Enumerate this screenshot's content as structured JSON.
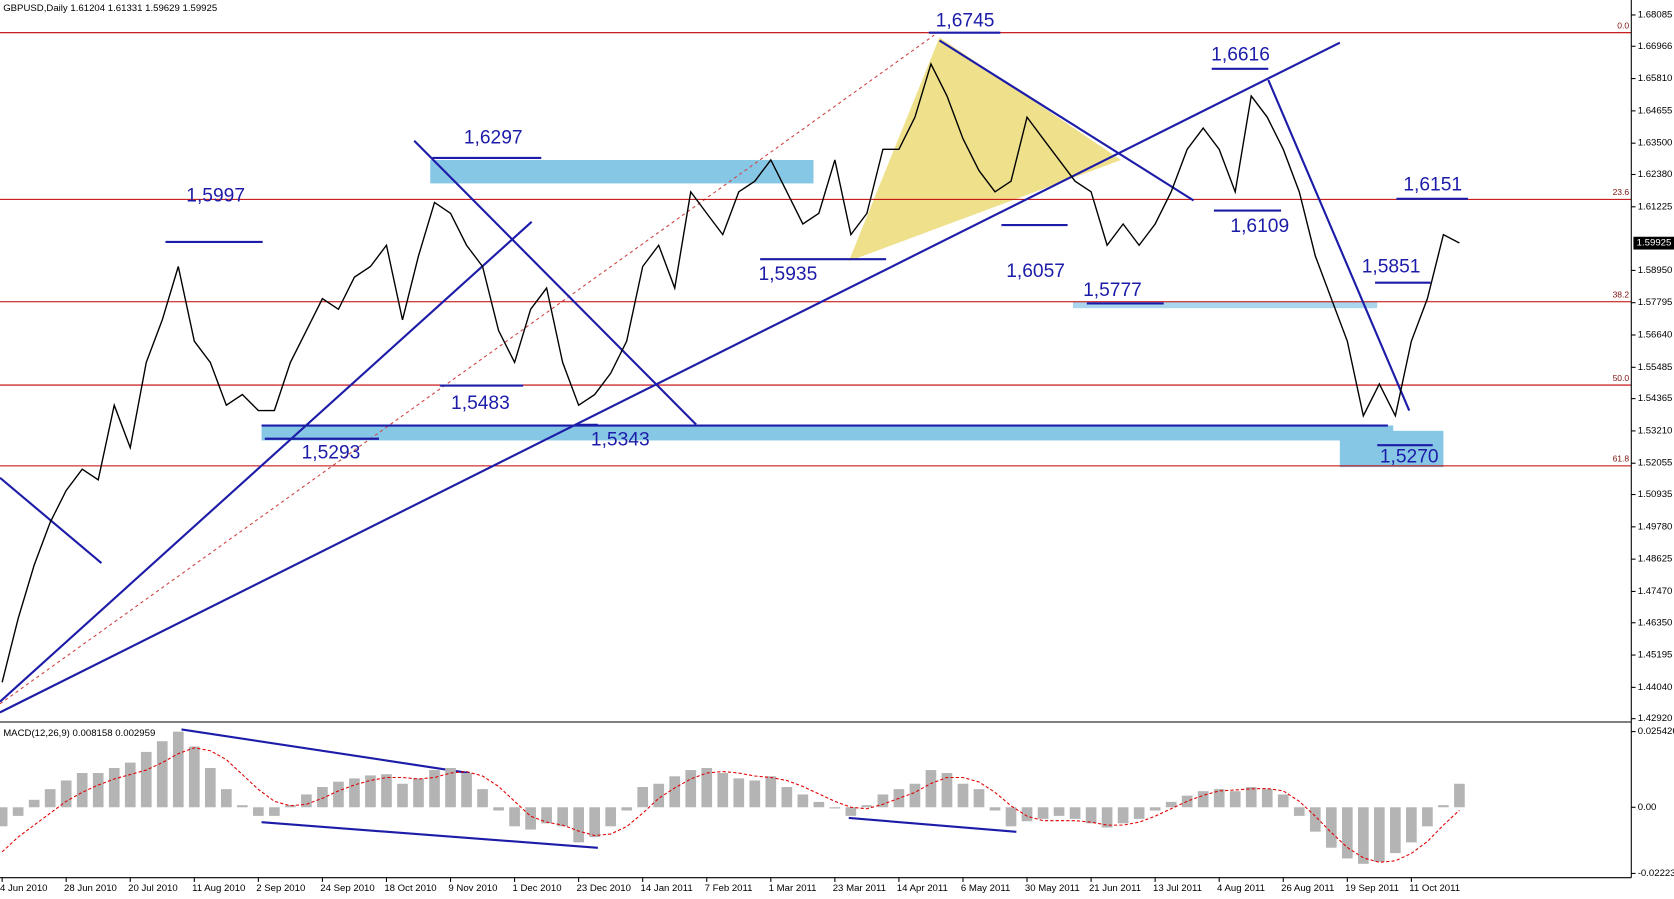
{
  "chart_data": {
    "type": "line",
    "title": "GBPUSD,Daily  1.61204 1.61331 1.59629 1.59925",
    "categories": [
      "4 Jun 2010",
      null,
      null,
      null,
      "28 Jun 2010",
      null,
      null,
      null,
      "20 Jul 2010",
      null,
      null,
      null,
      "11 Aug 2010",
      null,
      null,
      null,
      "2 Sep 2010",
      null,
      null,
      null,
      "24 Sep 2010",
      null,
      null,
      null,
      "18 Oct 2010",
      null,
      null,
      null,
      "9 Nov 2010",
      null,
      null,
      null,
      "1 Dec 2010",
      null,
      null,
      null,
      "23 Dec 2010",
      null,
      null,
      null,
      "14 Jan 2011",
      null,
      null,
      null,
      "7 Feb 2011",
      null,
      null,
      null,
      "1 Mar 2011",
      null,
      null,
      null,
      "23 Mar 2011",
      null,
      null,
      null,
      "14 Apr 2011",
      null,
      null,
      null,
      "6 May 2011",
      null,
      null,
      null,
      "30 May 2011",
      null,
      null,
      null,
      "21 Jun 2011",
      null,
      null,
      null,
      "13 Jul 2011",
      null,
      null,
      null,
      "4 Aug 2011",
      null,
      null,
      null,
      "26 Aug 2011",
      null,
      null,
      null,
      "19 Sep 2011",
      null,
      null,
      null,
      "11 Oct 2011",
      null,
      null,
      null
    ],
    "values": [
      1.4422,
      1.465,
      1.4841,
      1.4994,
      1.5108,
      1.5184,
      1.5146,
      1.5413,
      1.5261,
      1.5566,
      1.5718,
      1.5909,
      1.5642,
      1.5566,
      1.5413,
      1.5451,
      1.5394,
      1.5394,
      1.5566,
      1.568,
      1.5794,
      1.5756,
      1.5871,
      1.5909,
      1.5985,
      1.5718,
      1.5947,
      1.6138,
      1.6099,
      1.5985,
      1.5909,
      1.568,
      1.5566,
      1.5756,
      1.5832,
      1.5566,
      1.5413,
      1.5451,
      1.5527,
      1.5642,
      1.5909,
      1.5985,
      1.5832,
      1.6176,
      1.6099,
      1.6023,
      1.6176,
      1.6214,
      1.629,
      1.6176,
      1.6061,
      1.6099,
      1.629,
      1.6023,
      1.6099,
      1.6328,
      1.6328,
      1.6443,
      1.6633,
      1.6519,
      1.6366,
      1.6252,
      1.6176,
      1.6214,
      1.6443,
      1.6366,
      1.629,
      1.6214,
      1.6176,
      1.5985,
      1.6061,
      1.5985,
      1.6061,
      1.6176,
      1.6328,
      1.6404,
      1.6328,
      1.6176,
      1.6519,
      1.6443,
      1.6328,
      1.6176,
      1.5947,
      1.5794,
      1.5642,
      1.5375,
      1.5489,
      1.5375,
      1.5642,
      1.5794,
      1.6023,
      1.5993
    ],
    "color": "#000000",
    "ylim": [
      1.4284,
      1.6862
    ],
    "yticks": [
      1.68085,
      1.66966,
      {
        "value": 1.6581,
        "label": "1.65810"
      },
      1.64655,
      {
        "value": 1.635,
        "label": "1.63500"
      },
      {
        "value": 1.6238,
        "label": "1.62380"
      },
      1.61225,
      {
        "value": 1.5895,
        "label": "1.58950"
      },
      1.57795,
      {
        "value": 1.5664,
        "label": "1.56640"
      },
      1.55485,
      1.54365,
      {
        "value": 1.5321,
        "label": "1.53210"
      },
      1.52055,
      1.50935,
      {
        "value": 1.4978,
        "label": "1.49780"
      },
      1.48625,
      {
        "value": 1.4747,
        "label": "1.47470"
      },
      {
        "value": 1.4635,
        "label": "1.46350"
      },
      1.45195,
      {
        "value": 1.4404,
        "label": "1.44040"
      },
      {
        "value": 1.4292,
        "label": "1.42920"
      }
    ],
    "last_price": 1.59925,
    "fib_levels": [
      {
        "label": "0.0",
        "value": 1.6745
      },
      {
        "label": "23.6",
        "value": 1.6149
      },
      {
        "label": "38.2",
        "value": 1.5783
      },
      {
        "label": "50.0",
        "value": 1.5485
      },
      {
        "label": "61.8",
        "value": 1.5196
      }
    ],
    "fib_color": "#c00000",
    "annotations": [
      {
        "label": "1,6745",
        "value": 1.6745
      },
      {
        "label": "1,6297",
        "value": 1.6297
      },
      {
        "label": "1,5997",
        "value": 1.5997
      },
      {
        "label": "1,5935",
        "value": 1.5935
      },
      {
        "label": "1,6616",
        "value": 1.6616
      },
      {
        "label": "1,6151",
        "value": 1.6151
      },
      {
        "label": "1,6109",
        "value": 1.6109
      },
      {
        "label": "1,6057",
        "value": 1.6057
      },
      {
        "label": "1,5851",
        "value": 1.5851
      },
      {
        "label": "1,5777",
        "value": 1.5777
      },
      {
        "label": "1,5483",
        "value": 1.5483
      },
      {
        "label": "1,5293",
        "value": 1.5293
      },
      {
        "label": "1,5343",
        "value": 1.5343
      },
      {
        "label": "1,5270",
        "value": 1.527
      }
    ],
    "macd": {
      "title": "MACD(12,26,9) 0.008158 0.002959",
      "histogram": [
        -0.0064,
        -0.0029,
        0.0025,
        0.0061,
        0.009,
        0.0115,
        0.0115,
        0.0132,
        0.015,
        0.0186,
        0.0222,
        0.0254,
        0.0204,
        0.0132,
        0.0061,
        0.0007,
        -0.0029,
        -0.0029,
        0.0007,
        0.0043,
        0.0068,
        0.0086,
        0.0097,
        0.0107,
        0.0111,
        0.0079,
        0.0097,
        0.0125,
        0.0132,
        0.0115,
        0.0061,
        -0.0011,
        -0.0064,
        -0.0075,
        -0.0054,
        -0.0064,
        -0.0118,
        -0.01,
        -0.0064,
        -0.0011,
        0.0068,
        0.0079,
        0.0104,
        0.0125,
        0.0132,
        0.0115,
        0.0097,
        0.009,
        0.0104,
        0.0068,
        0.0043,
        0.0018,
        -0.0004,
        -0.0029,
        0.0007,
        0.0043,
        0.0061,
        0.0079,
        0.0125,
        0.0115,
        0.0079,
        0.0061,
        -0.0011,
        -0.0064,
        -0.0047,
        -0.0039,
        -0.0029,
        -0.0039,
        -0.0054,
        -0.0068,
        -0.0054,
        -0.0039,
        -0.0011,
        0.0018,
        0.0039,
        0.0054,
        0.0061,
        0.0054,
        0.0068,
        0.0061,
        0.0043,
        -0.0029,
        -0.0082,
        -0.0136,
        -0.0172,
        -0.019,
        -0.0183,
        -0.0154,
        -0.0118,
        -0.0064,
        0.0007,
        0.0079
      ],
      "signal": [
        -0.015,
        -0.01,
        -0.006,
        -0.002,
        0.002,
        0.005,
        0.0075,
        0.0095,
        0.011,
        0.0125,
        0.015,
        0.018,
        0.02,
        0.019,
        0.016,
        0.011,
        0.006,
        0.002,
        0.0005,
        0.001,
        0.003,
        0.0055,
        0.0075,
        0.009,
        0.01,
        0.01,
        0.0095,
        0.01,
        0.0115,
        0.012,
        0.0105,
        0.007,
        0.002,
        -0.003,
        -0.005,
        -0.006,
        -0.008,
        -0.0095,
        -0.009,
        -0.0065,
        -0.002,
        0.003,
        0.0065,
        0.0095,
        0.0115,
        0.012,
        0.0115,
        0.0105,
        0.01,
        0.009,
        0.007,
        0.0045,
        0.002,
        0.0,
        -0.0005,
        0.001,
        0.003,
        0.005,
        0.008,
        0.01,
        0.01,
        0.0085,
        0.005,
        0.0005,
        -0.003,
        -0.0045,
        -0.0045,
        -0.0045,
        -0.005,
        -0.006,
        -0.006,
        -0.005,
        -0.003,
        -0.0005,
        0.002,
        0.004,
        0.0055,
        0.0058,
        0.0062,
        0.0063,
        0.0055,
        0.002,
        -0.003,
        -0.0085,
        -0.0135,
        -0.017,
        -0.0185,
        -0.018,
        -0.0155,
        -0.0115,
        -0.006,
        -0.001
      ],
      "histogram_color": "#b4b4b4",
      "signal_color": "#e00000",
      "ylim": [
        -0.0233,
        0.0283
      ],
      "yticks": [
        0.025426,
        {
          "value": 0,
          "label": "0.00"
        },
        -0.02223
      ]
    }
  }
}
